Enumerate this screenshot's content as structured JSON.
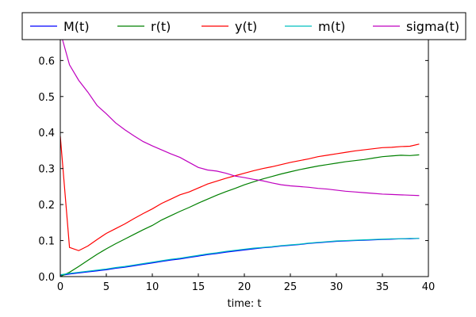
{
  "chart_data": {
    "type": "line",
    "title": "",
    "xlabel": "time: t",
    "ylabel": "",
    "xlim": [
      0,
      40
    ],
    "ylim": [
      0,
      0.68
    ],
    "xticks": [
      0,
      5,
      10,
      15,
      20,
      25,
      30,
      35,
      40
    ],
    "yticks": [
      0.0,
      0.1,
      0.2,
      0.3,
      0.4,
      0.5,
      0.6
    ],
    "ytick_labels": [
      "0.0",
      "0.1",
      "0.2",
      "0.3",
      "0.4",
      "0.5",
      "0.6"
    ],
    "grid": false,
    "legend": {
      "placement": "top",
      "columns": 5
    },
    "x": [
      0,
      1,
      2,
      3,
      4,
      5,
      6,
      7,
      8,
      9,
      10,
      11,
      12,
      13,
      14,
      15,
      16,
      17,
      18,
      19,
      20,
      21,
      22,
      23,
      24,
      25,
      26,
      27,
      28,
      29,
      30,
      31,
      32,
      33,
      34,
      35,
      36,
      37,
      38,
      39
    ],
    "series": [
      {
        "name": "M(t)",
        "color": "#0000ff",
        "values": [
          0.003,
          0.007,
          0.01,
          0.013,
          0.016,
          0.019,
          0.023,
          0.026,
          0.03,
          0.034,
          0.038,
          0.042,
          0.046,
          0.049,
          0.053,
          0.057,
          0.061,
          0.064,
          0.068,
          0.071,
          0.074,
          0.077,
          0.08,
          0.082,
          0.085,
          0.087,
          0.089,
          0.092,
          0.094,
          0.096,
          0.098,
          0.099,
          0.1,
          0.101,
          0.102,
          0.103,
          0.104,
          0.105,
          0.105,
          0.106
        ]
      },
      {
        "name": "r(t)",
        "color": "#008000",
        "values": [
          0.0,
          0.012,
          0.028,
          0.045,
          0.062,
          0.077,
          0.091,
          0.104,
          0.117,
          0.13,
          0.142,
          0.157,
          0.169,
          0.181,
          0.192,
          0.204,
          0.215,
          0.226,
          0.236,
          0.245,
          0.255,
          0.263,
          0.271,
          0.278,
          0.285,
          0.291,
          0.297,
          0.302,
          0.307,
          0.311,
          0.315,
          0.319,
          0.322,
          0.325,
          0.329,
          0.333,
          0.335,
          0.337,
          0.336,
          0.338
        ]
      },
      {
        "name": "y(t)",
        "color": "#ff0000",
        "values": [
          0.39,
          0.081,
          0.072,
          0.085,
          0.103,
          0.12,
          0.133,
          0.146,
          0.161,
          0.175,
          0.188,
          0.203,
          0.215,
          0.227,
          0.235,
          0.246,
          0.257,
          0.265,
          0.273,
          0.28,
          0.287,
          0.294,
          0.3,
          0.305,
          0.311,
          0.317,
          0.322,
          0.327,
          0.333,
          0.337,
          0.341,
          0.345,
          0.349,
          0.352,
          0.355,
          0.358,
          0.359,
          0.361,
          0.362,
          0.368
        ]
      },
      {
        "name": "m(t)",
        "color": "#00bfbf",
        "values": [
          0.005,
          0.009,
          0.012,
          0.015,
          0.018,
          0.021,
          0.025,
          0.028,
          0.032,
          0.036,
          0.04,
          0.044,
          0.048,
          0.051,
          0.055,
          0.059,
          0.063,
          0.066,
          0.07,
          0.073,
          0.076,
          0.079,
          0.081,
          0.083,
          0.086,
          0.088,
          0.09,
          0.093,
          0.095,
          0.097,
          0.099,
          0.1,
          0.101,
          0.102,
          0.103,
          0.104,
          0.105,
          0.105,
          0.106,
          0.106
        ]
      },
      {
        "name": "sigma(t)",
        "color": "#bf00bf",
        "values": [
          0.68,
          0.588,
          0.545,
          0.512,
          0.475,
          0.452,
          0.427,
          0.408,
          0.391,
          0.375,
          0.363,
          0.352,
          0.341,
          0.331,
          0.317,
          0.303,
          0.296,
          0.293,
          0.287,
          0.279,
          0.275,
          0.27,
          0.266,
          0.26,
          0.255,
          0.252,
          0.25,
          0.248,
          0.245,
          0.243,
          0.24,
          0.237,
          0.235,
          0.233,
          0.231,
          0.229,
          0.228,
          0.227,
          0.226,
          0.225
        ]
      }
    ]
  }
}
